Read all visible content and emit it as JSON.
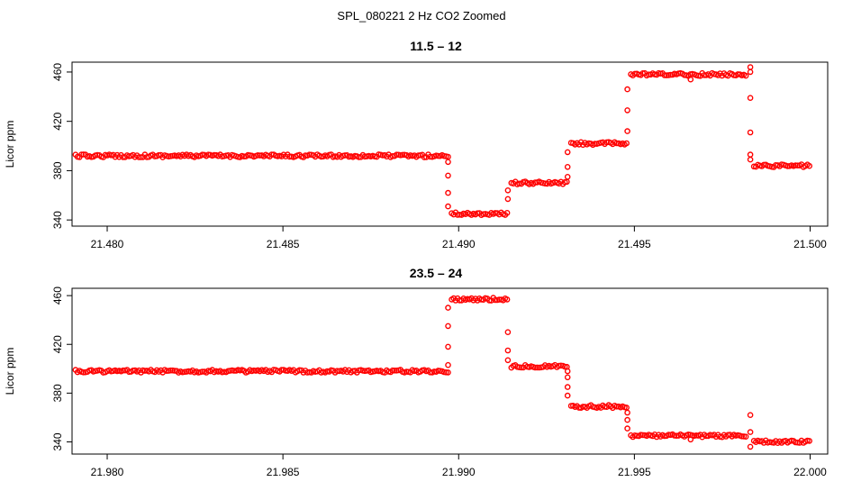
{
  "figure": {
    "title": "SPL_080221  2 Hz CO2 Zoomed"
  },
  "style": {
    "point_color": "#ff0000",
    "axis_color": "#000000"
  },
  "chart_data": [
    {
      "type": "scatter",
      "title": "11.5 – 12",
      "xlabel": "",
      "ylabel": "Licor ppm",
      "xlim": [
        21.479,
        21.5005
      ],
      "ylim": [
        335,
        468
      ],
      "xticks": [
        21.48,
        21.485,
        21.49,
        21.495,
        21.5
      ],
      "xtick_labels": [
        "21.480",
        "21.485",
        "21.490",
        "21.495",
        "21.500"
      ],
      "yticks": [
        340,
        380,
        420,
        460
      ],
      "ytick_labels": [
        "340",
        "380",
        "420",
        "460"
      ],
      "grid": false,
      "marker": "open-circle",
      "color": "#ff0000",
      "segments": [
        {
          "x_start": 21.4791,
          "x_end": 21.4897,
          "y": 392
        },
        {
          "x_start": 21.4898,
          "x_end": 21.4914,
          "y": 345
        },
        {
          "x_start": 21.4915,
          "x_end": 21.4931,
          "y": 370
        },
        {
          "x_start": 21.4932,
          "x_end": 21.4948,
          "y": 402
        },
        {
          "x_start": 21.4949,
          "x_end": 21.4982,
          "y": 458
        },
        {
          "x_start": 21.4984,
          "x_end": 21.5,
          "y": 384
        }
      ],
      "transition_points": [
        {
          "x": 21.4897,
          "y": 387
        },
        {
          "x": 21.4897,
          "y": 376
        },
        {
          "x": 21.4897,
          "y": 362
        },
        {
          "x": 21.4897,
          "y": 351
        },
        {
          "x": 21.4914,
          "y": 357
        },
        {
          "x": 21.4914,
          "y": 364
        },
        {
          "x": 21.4931,
          "y": 375
        },
        {
          "x": 21.4931,
          "y": 383
        },
        {
          "x": 21.4931,
          "y": 395
        },
        {
          "x": 21.4948,
          "y": 412
        },
        {
          "x": 21.4948,
          "y": 429
        },
        {
          "x": 21.4948,
          "y": 446
        },
        {
          "x": 21.4983,
          "y": 464
        },
        {
          "x": 21.4983,
          "y": 460
        },
        {
          "x": 21.4983,
          "y": 439
        },
        {
          "x": 21.4983,
          "y": 411
        },
        {
          "x": 21.4983,
          "y": 393
        },
        {
          "x": 21.4983,
          "y": 389
        },
        {
          "x": 21.4966,
          "y": 454
        }
      ]
    },
    {
      "type": "scatter",
      "title": "23.5 – 24",
      "xlabel": "",
      "ylabel": "Licor ppm",
      "xlim": [
        21.979,
        22.0005
      ],
      "ylim": [
        330,
        466
      ],
      "xticks": [
        21.98,
        21.985,
        21.99,
        21.995,
        22.0
      ],
      "xtick_labels": [
        "21.980",
        "21.985",
        "21.990",
        "21.995",
        "22.000"
      ],
      "yticks": [
        340,
        380,
        420,
        460
      ],
      "ytick_labels": [
        "340",
        "380",
        "420",
        "460"
      ],
      "grid": false,
      "marker": "open-circle",
      "color": "#ff0000",
      "segments": [
        {
          "x_start": 21.9791,
          "x_end": 21.9897,
          "y": 398
        },
        {
          "x_start": 21.9898,
          "x_end": 21.9914,
          "y": 457
        },
        {
          "x_start": 21.9915,
          "x_end": 21.9931,
          "y": 402
        },
        {
          "x_start": 21.9932,
          "x_end": 21.9948,
          "y": 369
        },
        {
          "x_start": 21.9949,
          "x_end": 21.9982,
          "y": 345
        },
        {
          "x_start": 21.9984,
          "x_end": 22.0,
          "y": 340
        }
      ],
      "transition_points": [
        {
          "x": 21.9897,
          "y": 403
        },
        {
          "x": 21.9897,
          "y": 418
        },
        {
          "x": 21.9897,
          "y": 435
        },
        {
          "x": 21.9897,
          "y": 450
        },
        {
          "x": 21.9914,
          "y": 430
        },
        {
          "x": 21.9914,
          "y": 415
        },
        {
          "x": 21.9914,
          "y": 407
        },
        {
          "x": 21.9931,
          "y": 398
        },
        {
          "x": 21.9931,
          "y": 393
        },
        {
          "x": 21.9931,
          "y": 385
        },
        {
          "x": 21.9931,
          "y": 378
        },
        {
          "x": 21.9948,
          "y": 364
        },
        {
          "x": 21.9948,
          "y": 358
        },
        {
          "x": 21.9948,
          "y": 351
        },
        {
          "x": 21.9983,
          "y": 362
        },
        {
          "x": 21.9983,
          "y": 348
        },
        {
          "x": 21.9983,
          "y": 336
        },
        {
          "x": 21.9966,
          "y": 342
        }
      ]
    }
  ]
}
